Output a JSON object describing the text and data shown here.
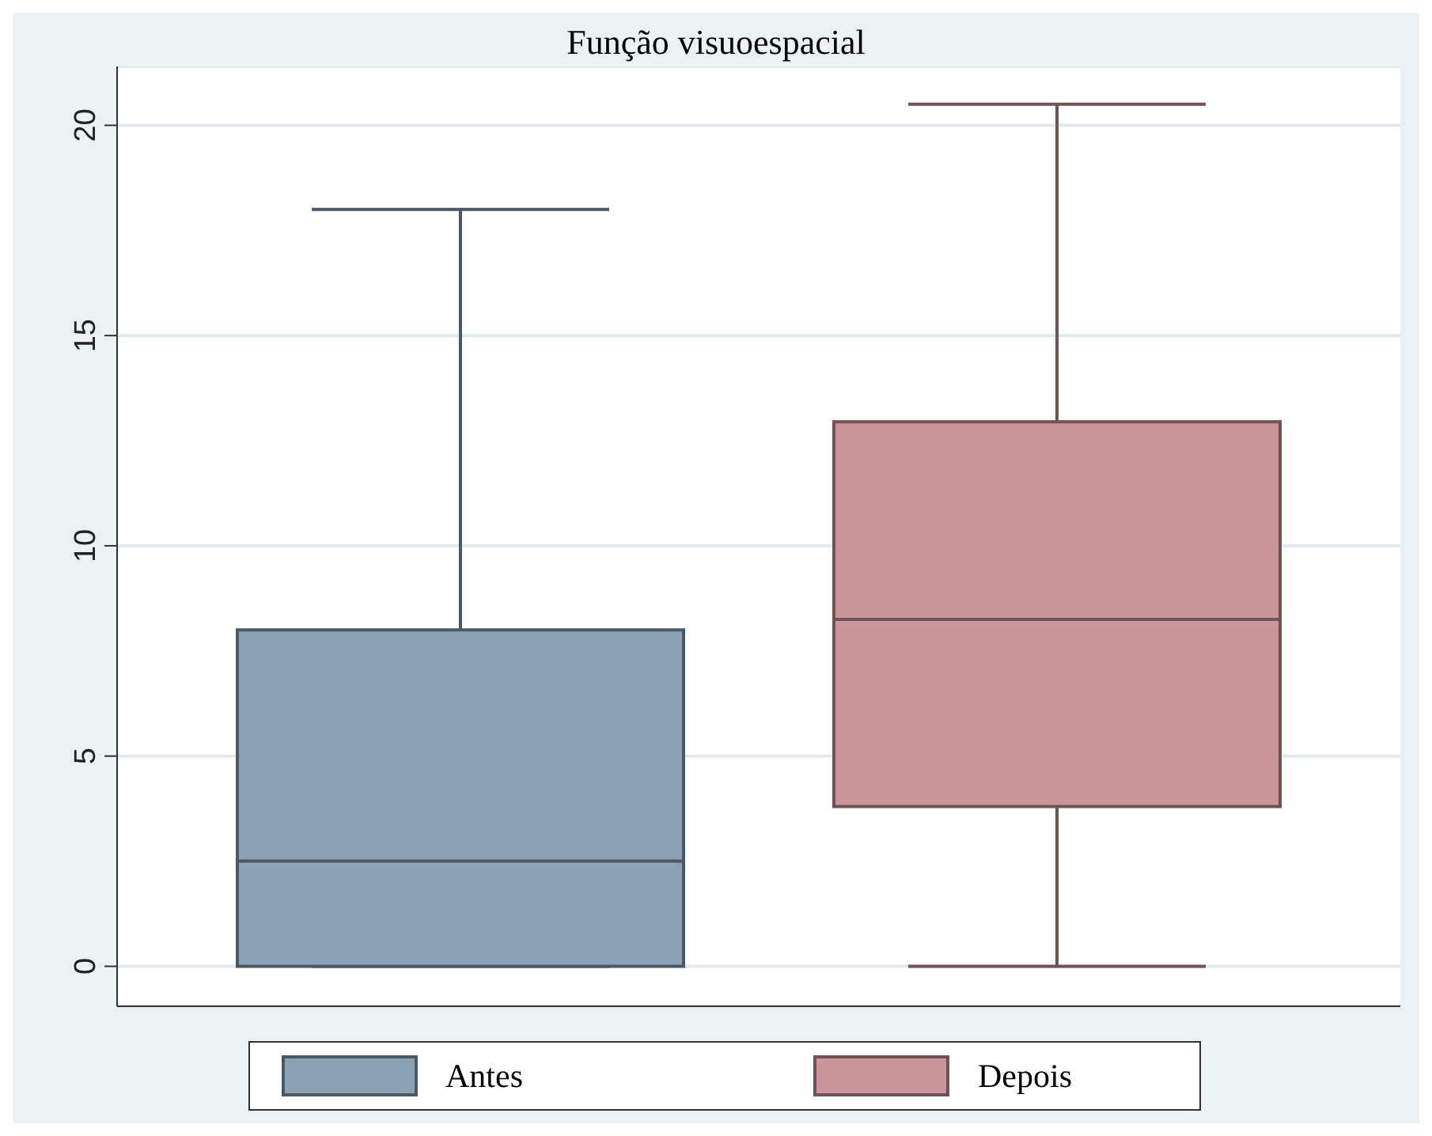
{
  "chart_data": {
    "type": "box",
    "title": "Função visuoespacial",
    "categories": [
      null
    ],
    "series": [
      {
        "name": "Antes",
        "color": "#8ba2b5",
        "boxes": [
          {
            "low": 0,
            "q1": 0,
            "median": 2.5,
            "q3": 8,
            "high": 18
          }
        ]
      },
      {
        "name": "Depois",
        "color": "#c9969a",
        "boxes": [
          {
            "low": 0,
            "q1": 3.8,
            "median": 8.25,
            "q3": 12.95,
            "high": 20.5
          }
        ]
      }
    ],
    "ylim": [
      -0.95,
      21.4
    ],
    "yticks": [
      0,
      5,
      10,
      15,
      20
    ],
    "grid": "y",
    "legend": "bottom"
  }
}
